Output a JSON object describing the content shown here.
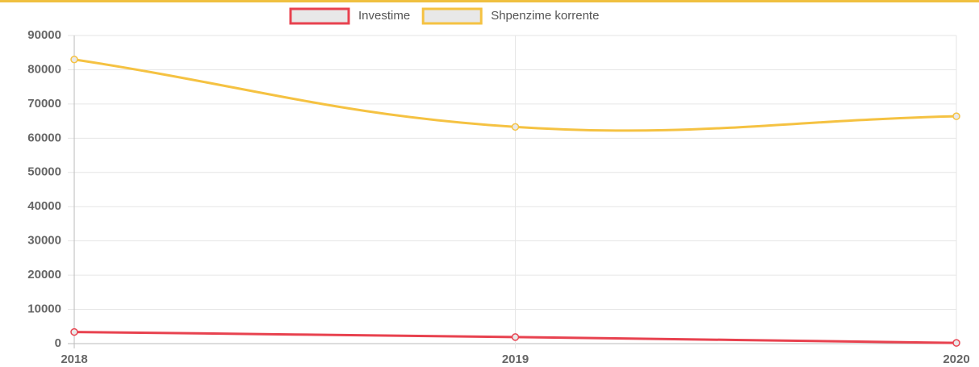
{
  "chart_data": {
    "type": "line",
    "categories": [
      "2018",
      "2019",
      "2020"
    ],
    "series": [
      {
        "name": "Investime",
        "color": "#e8424f",
        "values": [
          3400,
          1900,
          200
        ]
      },
      {
        "name": "Shpenzime korrente",
        "color": "#f5c242",
        "values": [
          83000,
          63300,
          66400
        ]
      }
    ],
    "ylim": [
      0,
      90000
    ],
    "yticks": [
      0,
      10000,
      20000,
      30000,
      40000,
      50000,
      60000,
      70000,
      80000,
      90000
    ],
    "grid": true,
    "legend": "top"
  }
}
